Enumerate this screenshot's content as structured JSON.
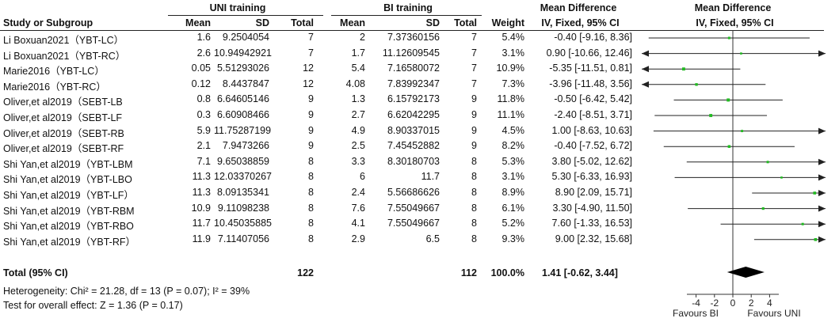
{
  "header": {
    "group1": "UNI training",
    "group2": "BI training",
    "md_top": "Mean Difference",
    "md_top_plot": "Mean Difference",
    "col_study": "Study or Subgroup",
    "col_mean1": "Mean",
    "col_sd1": "SD",
    "col_total1": "Total",
    "col_mean2": "Mean",
    "col_sd2": "SD",
    "col_total2": "Total",
    "col_weight": "Weight",
    "col_md_stats": "IV, Fixed, 95% CI",
    "col_md_plot": "IV, Fixed, 95% CI"
  },
  "rows": [
    {
      "study": "Li Boxuan2021（YBT-LC）",
      "mean1": "1.6",
      "sd1": "9.2504054",
      "n1": "7",
      "mean2": "2",
      "sd2": "7.37360156",
      "n2": "7",
      "weight": "5.4%",
      "ci": "-0.40 [-9.16, 8.36]"
    },
    {
      "study": "Li Boxuan2021（YBT-RC）",
      "mean1": "2.6",
      "sd1": "10.94942921",
      "n1": "7",
      "mean2": "1.7",
      "sd2": "11.12609545",
      "n2": "7",
      "weight": "3.1%",
      "ci": "0.90 [-10.66, 12.46]"
    },
    {
      "study": "Marie2016（YBT-LC）",
      "mean1": "0.05",
      "sd1": "5.51293026",
      "n1": "12",
      "mean2": "5.4",
      "sd2": "7.16580072",
      "n2": "7",
      "weight": "10.9%",
      "ci": "-5.35 [-11.51, 0.81]"
    },
    {
      "study": "Marie2016（YBT-RC）",
      "mean1": "0.12",
      "sd1": "8.4437847",
      "n1": "12",
      "mean2": "4.08",
      "sd2": "7.83992347",
      "n2": "7",
      "weight": "7.3%",
      "ci": "-3.96 [-11.48, 3.56]"
    },
    {
      "study": "Oliver,et al2019（SEBT-LB",
      "mean1": "0.8",
      "sd1": "6.64605146",
      "n1": "9",
      "mean2": "1.3",
      "sd2": "6.15792173",
      "n2": "9",
      "weight": "11.8%",
      "ci": "-0.50 [-6.42, 5.42]"
    },
    {
      "study": "Oliver,et al2019（SEBT-LF",
      "mean1": "0.3",
      "sd1": "6.60908466",
      "n1": "9",
      "mean2": "2.7",
      "sd2": "6.62042295",
      "n2": "9",
      "weight": "11.1%",
      "ci": "-2.40 [-8.51, 3.71]"
    },
    {
      "study": "Oliver,et al2019（SEBT-RB",
      "mean1": "5.9",
      "sd1": "11.75287199",
      "n1": "9",
      "mean2": "4.9",
      "sd2": "8.90337015",
      "n2": "9",
      "weight": "4.5%",
      "ci": "1.00 [-8.63, 10.63]"
    },
    {
      "study": "Oliver,et al2019（SEBT-RF",
      "mean1": "2.1",
      "sd1": "7.9473266",
      "n1": "9",
      "mean2": "2.5",
      "sd2": "7.45452882",
      "n2": "9",
      "weight": "8.2%",
      "ci": "-0.40 [-7.52, 6.72]"
    },
    {
      "study": "Shi Yan,et al2019（YBT-LBM",
      "mean1": "7.1",
      "sd1": "9.65038859",
      "n1": "8",
      "mean2": "3.3",
      "sd2": "8.30180703",
      "n2": "8",
      "weight": "5.3%",
      "ci": "3.80 [-5.02, 12.62]"
    },
    {
      "study": "Shi Yan,et al2019（YBT-LBO",
      "mean1": "11.3",
      "sd1": "12.03370267",
      "n1": "8",
      "mean2": "6",
      "sd2": "11.7",
      "n2": "8",
      "weight": "3.1%",
      "ci": "5.30 [-6.33, 16.93]"
    },
    {
      "study": "Shi Yan,et al2019（YBT-LF）",
      "mean1": "11.3",
      "sd1": "8.09135341",
      "n1": "8",
      "mean2": "2.4",
      "sd2": "5.56686626",
      "n2": "8",
      "weight": "8.9%",
      "ci": "8.90 [2.09, 15.71]"
    },
    {
      "study": "Shi Yan,et al2019（YBT-RBM",
      "mean1": "10.9",
      "sd1": "9.11098238",
      "n1": "8",
      "mean2": "7.6",
      "sd2": "7.55049667",
      "n2": "8",
      "weight": "6.1%",
      "ci": "3.30 [-4.90, 11.50]"
    },
    {
      "study": "Shi Yan,et al2019（YBT-RBO",
      "mean1": "11.7",
      "sd1": "10.45035885",
      "n1": "8",
      "mean2": "4.1",
      "sd2": "7.55049667",
      "n2": "8",
      "weight": "5.2%",
      "ci": "7.60 [-1.33, 16.53]"
    },
    {
      "study": "Shi Yan,et al2019（YBT-RF）",
      "mean1": "11.9",
      "sd1": "7.11407056",
      "n1": "8",
      "mean2": "2.9",
      "sd2": "6.5",
      "n2": "8",
      "weight": "9.3%",
      "ci": "9.00 [2.32, 15.68]"
    }
  ],
  "total": {
    "label": "Total (95% CI)",
    "n1": "122",
    "n2": "112",
    "weight": "100.0%",
    "ci": "1.41 [-0.62, 3.44]"
  },
  "footer": {
    "heterogeneity": "Heterogeneity: Chi² = 21.28, df = 13 (P = 0.07); I² = 39%",
    "overall": "Test for overall effect: Z = 1.36 (P = 0.17)"
  },
  "axis": {
    "tick_labels": [
      "-4",
      "-2",
      "0",
      "2",
      "4"
    ],
    "favours_left": "Favours BI",
    "favours_right": "Favours UNI"
  },
  "chart_data": {
    "type": "forest",
    "x_range": [
      -10,
      10
    ],
    "axis_ticks": [
      -4,
      -2,
      0,
      2,
      4
    ],
    "tick_labels": [
      "-4",
      "-2",
      "0",
      "2",
      "4"
    ],
    "null_line": 0,
    "studies": [
      {
        "md": -0.4,
        "lo": -9.16,
        "hi": 8.36,
        "weight": 5.4
      },
      {
        "md": 0.9,
        "lo": -10.66,
        "hi": 12.46,
        "weight": 3.1
      },
      {
        "md": -5.35,
        "lo": -11.51,
        "hi": 0.81,
        "weight": 10.9
      },
      {
        "md": -3.96,
        "lo": -11.48,
        "hi": 3.56,
        "weight": 7.3
      },
      {
        "md": -0.5,
        "lo": -6.42,
        "hi": 5.42,
        "weight": 11.8
      },
      {
        "md": -2.4,
        "lo": -8.51,
        "hi": 3.71,
        "weight": 11.1
      },
      {
        "md": 1.0,
        "lo": -8.63,
        "hi": 10.63,
        "weight": 4.5
      },
      {
        "md": -0.4,
        "lo": -7.52,
        "hi": 6.72,
        "weight": 8.2
      },
      {
        "md": 3.8,
        "lo": -5.02,
        "hi": 12.62,
        "weight": 5.3
      },
      {
        "md": 5.3,
        "lo": -6.33,
        "hi": 16.93,
        "weight": 3.1
      },
      {
        "md": 8.9,
        "lo": 2.09,
        "hi": 15.71,
        "weight": 8.9
      },
      {
        "md": 3.3,
        "lo": -4.9,
        "hi": 11.5,
        "weight": 6.1
      },
      {
        "md": 7.6,
        "lo": -1.33,
        "hi": 16.53,
        "weight": 5.2
      },
      {
        "md": 9.0,
        "lo": 2.32,
        "hi": 15.68,
        "weight": 9.3
      }
    ],
    "pooled": {
      "md": 1.41,
      "lo": -0.62,
      "hi": 3.44
    },
    "colors": {
      "point": "#22bb22",
      "line": "#222222",
      "diamond": "#000000"
    }
  }
}
